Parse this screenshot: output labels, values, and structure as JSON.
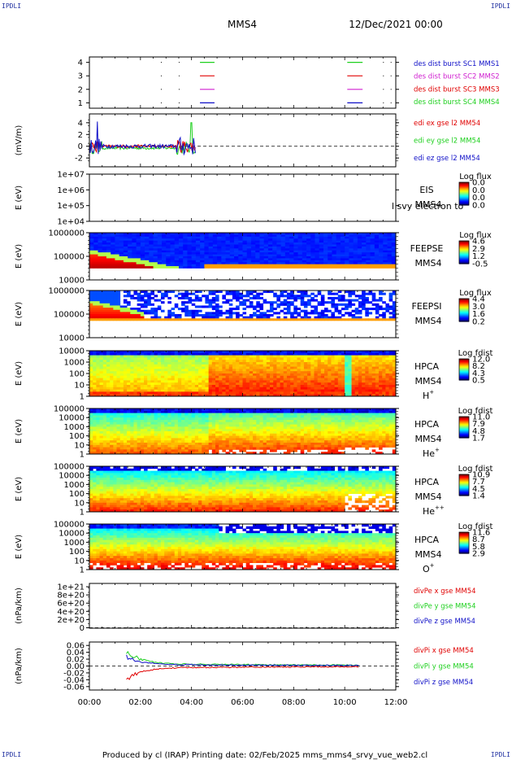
{
  "corner_labels": {
    "tl": "IPDLI",
    "tr": "IPDLI",
    "bl": "IPDLI",
    "br": "IPDLI"
  },
  "header": {
    "spacecraft": "MMS4",
    "datetime": "12/Dec/2021 00:00"
  },
  "footer": {
    "text": "Produced by cl (IRAP)   Printing date: 02/Feb/2025   mms_mms4_srvy_vue_web2.cl"
  },
  "colors": {
    "red": "#e00000",
    "green": "#1ed01e",
    "blue": "#1010c8",
    "magenta": "#d020d0",
    "darkblue": "#0000a0"
  },
  "chart_data": [
    {
      "type": "scatter",
      "id": "burst",
      "y_ticks": [
        "1",
        "2",
        "3",
        "4"
      ],
      "ylim": [
        0.6,
        4.4
      ],
      "legend": [
        {
          "name": "des dist burst SC1 MMS1",
          "color": "#1010c8"
        },
        {
          "name": "des dist burst SC2 MMS2",
          "color": "#d020d0"
        },
        {
          "name": "des dist burst SC3 MMS3",
          "color": "#e00000"
        },
        {
          "name": "des dist burst SC4 MMS4",
          "color": "#1ed01e"
        }
      ],
      "segments": [
        {
          "sc": 4,
          "start": 4.33,
          "end": 4.9
        },
        {
          "sc": 3,
          "start": 4.33,
          "end": 4.9
        },
        {
          "sc": 2,
          "start": 4.33,
          "end": 4.9
        },
        {
          "sc": 1,
          "start": 4.33,
          "end": 4.9
        },
        {
          "sc": 4,
          "start": 10.1,
          "end": 10.7
        },
        {
          "sc": 3,
          "start": 10.1,
          "end": 10.7
        },
        {
          "sc": 2,
          "start": 10.1,
          "end": 10.7
        },
        {
          "sc": 1,
          "start": 10.1,
          "end": 10.7
        }
      ],
      "dots_hours": [
        2.8,
        3.5,
        11.5,
        11.8
      ]
    },
    {
      "type": "line",
      "id": "edi",
      "ylabel": "(mV/m)",
      "y_ticks": [
        "-2",
        "0",
        "2",
        "4"
      ],
      "ylim": [
        -3.5,
        5.5
      ],
      "legend": [
        {
          "name": "edi ex gse l2 MM54",
          "color": "#e00000"
        },
        {
          "name": "edi ey gse l2 MM54",
          "color": "#1ed01e"
        },
        {
          "name": "edi ez gse l2 MM54",
          "color": "#1010c8"
        }
      ]
    },
    {
      "type": "heatmap",
      "id": "eis",
      "ylabel": "E (eV)",
      "y_ticks": [
        "1e+04",
        "1e+05",
        "1e+06",
        "1e+07"
      ],
      "instrument": "EIS",
      "spacecraft": "MMS4",
      "overflow_text": "l svy electron to",
      "colorbar_title": "Log flux",
      "colorbar_ticks": [
        "0.0",
        "0.0",
        "0.0",
        "0.0"
      ]
    },
    {
      "type": "heatmap",
      "id": "feepse",
      "ylabel": "E (eV)",
      "y_ticks": [
        "10000",
        "100000",
        "1000000"
      ],
      "instrument": "FEEPSE",
      "spacecraft": "MMS4",
      "colorbar_title": "Log flux",
      "colorbar_ticks": [
        "4.6",
        "2.9",
        "1.2",
        "-0.5"
      ]
    },
    {
      "type": "heatmap",
      "id": "feepsi",
      "ylabel": "E (eV)",
      "y_ticks": [
        "10000",
        "100000",
        "1000000"
      ],
      "instrument": "FEEPSI",
      "spacecraft": "MMS4",
      "colorbar_title": "Log flux",
      "colorbar_ticks": [
        "4.4",
        "3.0",
        "1.6",
        "0.2"
      ]
    },
    {
      "type": "heatmap",
      "id": "hpca_h",
      "ylabel": "E (eV)",
      "y_ticks": [
        "1",
        "10",
        "100",
        "1000",
        "10000"
      ],
      "instrument": "HPCA",
      "spacecraft": "MMS4",
      "species": "H",
      "species_sup": "+",
      "colorbar_title": "Log fdist",
      "colorbar_ticks": [
        "12.0",
        "8.2",
        "4.3",
        "0.5"
      ]
    },
    {
      "type": "heatmap",
      "id": "hpca_he",
      "ylabel": "E (eV)",
      "y_ticks": [
        "1",
        "10",
        "100",
        "1000",
        "10000",
        "100000"
      ],
      "instrument": "HPCA",
      "spacecraft": "MMS4",
      "species": "He",
      "species_sup": "+",
      "colorbar_title": "Log fdist",
      "colorbar_ticks": [
        "11.0",
        "7.9",
        "4.8",
        "1.7"
      ]
    },
    {
      "type": "heatmap",
      "id": "hpca_hepp",
      "ylabel": "E (eV)",
      "y_ticks": [
        "1",
        "10",
        "100",
        "1000",
        "10000",
        "100000"
      ],
      "instrument": "HPCA",
      "spacecraft": "MMS4",
      "species": "He",
      "species_sup": "++",
      "colorbar_title": "Log fdist",
      "colorbar_ticks": [
        "10.9",
        "7.7",
        "4.5",
        "1.4"
      ]
    },
    {
      "type": "heatmap",
      "id": "hpca_o",
      "ylabel": "E (eV)",
      "y_ticks": [
        "1",
        "10",
        "100",
        "1000",
        "10000",
        "100000"
      ],
      "instrument": "HPCA",
      "spacecraft": "MMS4",
      "species": "O",
      "species_sup": "+",
      "colorbar_title": "Log fdist",
      "colorbar_ticks": [
        "11.6",
        "8.7",
        "5.8",
        "2.9"
      ]
    },
    {
      "type": "line",
      "id": "divpe",
      "ylabel": "(nPa/km)",
      "y_ticks": [
        "0",
        "2e+20",
        "4e+20",
        "6e+20",
        "8e+20",
        "1e+21"
      ],
      "ylim": [
        -1e+19,
        1.08e+21
      ],
      "legend": [
        {
          "name": "divPe x gse MM54",
          "color": "#e00000"
        },
        {
          "name": "divPe y gse MM54",
          "color": "#1ed01e"
        },
        {
          "name": "divPe z gse MM54",
          "color": "#1010c8"
        }
      ]
    },
    {
      "type": "line",
      "id": "divpi",
      "ylabel": "(nPa/km)",
      "y_ticks": [
        "-0.06",
        "-0.04",
        "-0.02",
        "0.00",
        "0.02",
        "0.04",
        "0.06"
      ],
      "ylim": [
        -0.07,
        0.07
      ],
      "legend": [
        {
          "name": "divPi x gse MM54",
          "color": "#e00000"
        },
        {
          "name": "divPi y gse MM54",
          "color": "#1ed01e"
        },
        {
          "name": "divPi z gse MM54",
          "color": "#1010c8"
        }
      ]
    }
  ],
  "x_axis": {
    "ticks": [
      "00:00",
      "02:00",
      "04:00",
      "06:00",
      "08:00",
      "10:00",
      "12:00"
    ],
    "range_hours": [
      0,
      12
    ]
  }
}
